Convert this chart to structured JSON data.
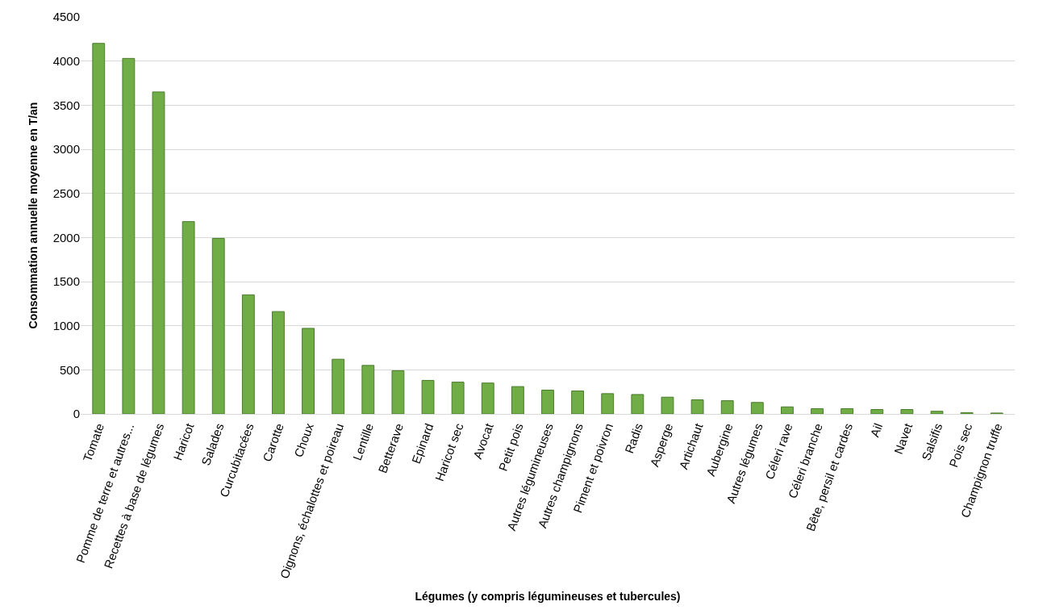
{
  "chart_data": {
    "type": "bar",
    "xlabel": "Légumes (y compris légumineuses et tubercules)",
    "ylabel": "Consommation annuelle moyenne en T/an",
    "categories": [
      "Tomate",
      "Pomme de terre et autres...",
      "Recettes à base de légumes",
      "Haricot",
      "Salades",
      "Curcubitacées",
      "Carotte",
      "Choux",
      "Oignons, échalottes et poireau",
      "Lentille",
      "Betterave",
      "Epinard",
      "Haricot sec",
      "Avocat",
      "Petit pois",
      "Autres légumineuses",
      "Autres champignons",
      "Piment et poivron",
      "Radis",
      "Asperge",
      "Artichaut",
      "Aubergine",
      "Autres légumes",
      "Céleri rave",
      "Céleri branche",
      "Bête, persil et cardes",
      "Ail",
      "Navet",
      "Salsifis",
      "Pois sec",
      "Champignon truffe"
    ],
    "values": [
      4200,
      4030,
      3650,
      2180,
      1990,
      1350,
      1160,
      970,
      620,
      550,
      490,
      380,
      360,
      350,
      310,
      270,
      260,
      230,
      220,
      190,
      160,
      150,
      130,
      80,
      60,
      60,
      50,
      50,
      30,
      15,
      10
    ],
    "color": "#70ad47",
    "ylim": [
      0,
      4500
    ],
    "yticks": [
      0,
      500,
      1000,
      1500,
      2000,
      2500,
      3000,
      3500,
      4000,
      4500
    ],
    "grid": "y"
  }
}
